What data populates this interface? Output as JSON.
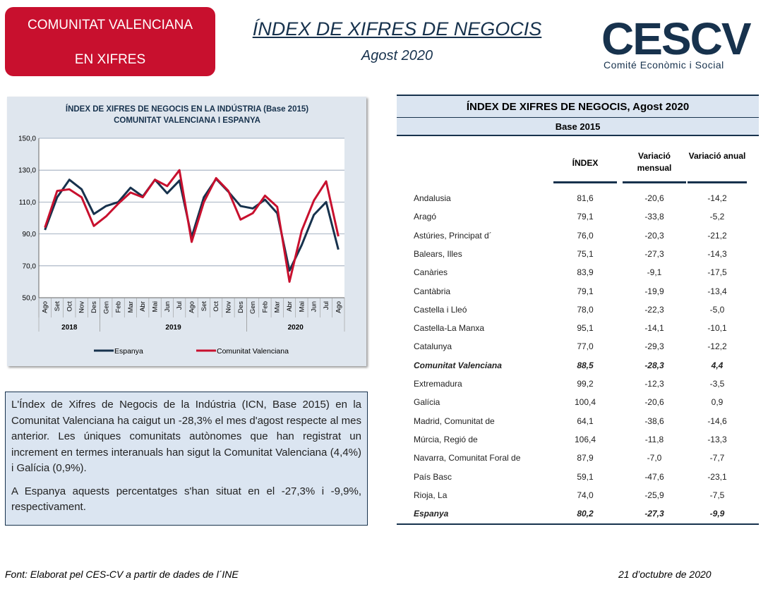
{
  "header": {
    "badge_lines": [
      "COMUNITAT VALENCIANA",
      "EN XIFRES"
    ],
    "title": "ÍNDEX DE XIFRES DE NEGOCIS",
    "subtitle": "Agost 2020",
    "logo": "CESCV",
    "logo_sub": "Comité Econòmic i Social"
  },
  "chart_data": {
    "type": "line",
    "title_lines": [
      "ÍNDEX DE XIFRES DE NEGOCIS EN LA INDÚSTRIA (Base 2015)",
      "COMUNITAT VALENCIANA I ESPANYA"
    ],
    "categories": [
      "Ago",
      "Set",
      "Oct",
      "Nov",
      "Des",
      "Gen",
      "Feb",
      "Mar",
      "Abr",
      "Mai",
      "Jun",
      "Jul",
      "Ago",
      "Set",
      "Oct",
      "Nov",
      "Des",
      "Gen",
      "Feb",
      "Mar",
      "Abr",
      "Mai",
      "Jun",
      "Jul",
      "Ago"
    ],
    "year_groups": [
      {
        "label": "2018",
        "span": 5
      },
      {
        "label": "2019",
        "span": 12
      },
      {
        "label": "2020",
        "span": 8
      }
    ],
    "series": [
      {
        "name": "Espanya",
        "color": "#17324d",
        "values": [
          92.5,
          113,
          124,
          118,
          102.5,
          107.5,
          110,
          119,
          113.5,
          124,
          115.5,
          123.5,
          88,
          113,
          124.5,
          116.5,
          107.5,
          106,
          111.5,
          103,
          67,
          83,
          102,
          110,
          80.2
        ]
      },
      {
        "name": "Comunitat Valenciana",
        "color": "#c8102e",
        "values": [
          94,
          117,
          118,
          113,
          95,
          101,
          109,
          116,
          113,
          124,
          120,
          130,
          85,
          110,
          125,
          117,
          99,
          103,
          114,
          107,
          60,
          92,
          111,
          123,
          88.5
        ]
      }
    ],
    "ylim": [
      50,
      150
    ],
    "yticks": [
      {
        "value": 50,
        "label": "50,0"
      },
      {
        "value": 70,
        "label": "70,0"
      },
      {
        "value": 90,
        "label": "90,0"
      },
      {
        "value": 110,
        "label": "110,0"
      },
      {
        "value": 130,
        "label": "130,0"
      },
      {
        "value": 150,
        "label": "150,0"
      }
    ],
    "grid": true
  },
  "table": {
    "title": "ÍNDEX DE XIFRES DE NEGOCIS, Agost 2020",
    "subtitle": "Base 2015",
    "columns": [
      "ÍNDEX",
      "Variació mensual",
      "Variació anual"
    ],
    "rows": [
      [
        "Andalusia",
        "81,6",
        "-20,6",
        "-14,2"
      ],
      [
        "Aragó",
        "79,1",
        "-33,8",
        "-5,2"
      ],
      [
        "Astúries, Principat d´",
        "76,0",
        "-20,3",
        "-21,2"
      ],
      [
        "Balears, Illes",
        "75,1",
        "-27,3",
        "-14,3"
      ],
      [
        "Canàries",
        "83,9",
        "-9,1",
        "-17,5"
      ],
      [
        "Cantàbria",
        "79,1",
        "-19,9",
        "-13,4"
      ],
      [
        "Castella i Lleó",
        "78,0",
        "-22,3",
        "-5,0"
      ],
      [
        "Castella-La Manxa",
        "95,1",
        "-14,1",
        "-10,1"
      ],
      [
        "Catalunya",
        "77,0",
        "-29,3",
        "-12,2"
      ],
      [
        "Comunitat Valenciana",
        "88,5",
        "-28,3",
        "4,4"
      ],
      [
        "Extremadura",
        "99,2",
        "-12,3",
        "-3,5"
      ],
      [
        "Galícia",
        "100,4",
        "-20,6",
        "0,9"
      ],
      [
        "Madrid, Comunitat de",
        "64,1",
        "-38,6",
        "-14,6"
      ],
      [
        "Múrcia, Regió de",
        "106,4",
        "-11,8",
        "-13,3"
      ],
      [
        "Navarra, Comunitat Foral de",
        "87,9",
        "-7,0",
        "-7,7"
      ],
      [
        "País Basc",
        "59,1",
        "-47,6",
        "-23,1"
      ],
      [
        "Rioja, La",
        "74,0",
        "-25,9",
        "-7,5"
      ],
      [
        "Espanya",
        "80,2",
        "-27,3",
        "-9,9"
      ]
    ],
    "highlight_rows": [
      9,
      17
    ]
  },
  "text": {
    "paragraphs": [
      "L'Índex de Xifres de Negocis de la Indústria (ICN, Base 2015) en la Comunitat Valenciana ha caigut un -28,3% el mes d'agost respecte al mes anterior. Les úniques comunitats autònomes que han registrat un increment en termes interanuals han sigut la Comunitat Valenciana (4,4%) i Galícia (0,9%).",
      "A Espanya aquests percentatges s'han situat en el -27,3% i -9,9%, respectivament."
    ]
  },
  "footer": {
    "source": "Font: Elaborat pel CES-CV a partir de dades de l´INE",
    "date": "21 d’octubre de 2020"
  }
}
